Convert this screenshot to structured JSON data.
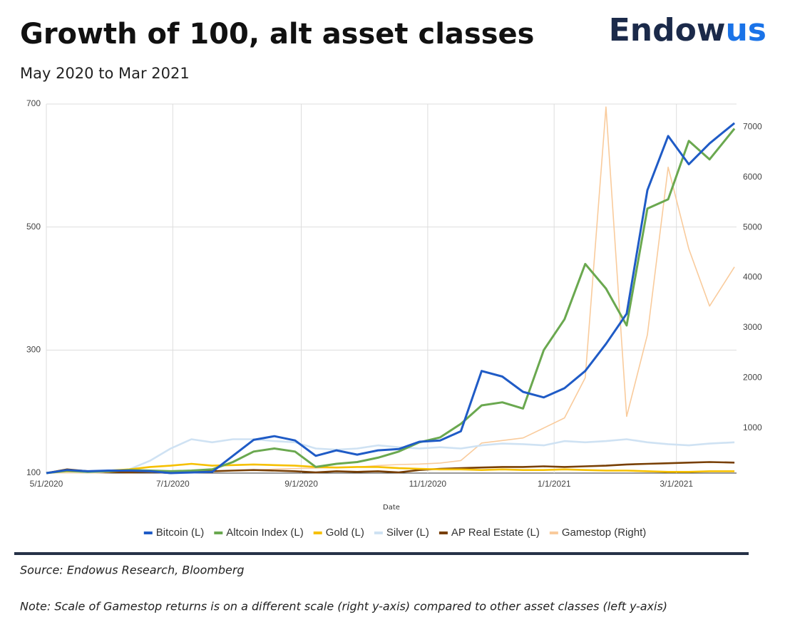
{
  "chart_data": {
    "type": "line",
    "title": "Growth of 100, alt asset classes",
    "subtitle": "May 2020 to Mar 2021",
    "logo": {
      "main": "Endow",
      "accent": "us"
    },
    "x_label": "Date",
    "source": "Source: Endowus Research, Bloomberg",
    "note": "Note: Scale of Gamestop returns is on a different scale (right y-axis) compared to other asset classes (left y-axis)",
    "x": [
      "5/1/2020",
      "5/11/2020",
      "5/21/2020",
      "5/31/2020",
      "6/10/2020",
      "6/20/2020",
      "6/30/2020",
      "7/10/2020",
      "7/20/2020",
      "7/30/2020",
      "8/9/2020",
      "8/19/2020",
      "8/29/2020",
      "9/8/2020",
      "9/18/2020",
      "9/28/2020",
      "10/8/2020",
      "10/18/2020",
      "10/28/2020",
      "11/7/2020",
      "11/17/2020",
      "11/27/2020",
      "12/7/2020",
      "12/17/2020",
      "12/27/2020",
      "1/6/2021",
      "1/16/2021",
      "1/26/2021",
      "2/5/2021",
      "2/15/2021",
      "2/25/2021",
      "3/7/2021",
      "3/17/2021",
      "3/29/2021"
    ],
    "xlim": [
      "5/1/2020",
      "3/30/2021"
    ],
    "xticks": [
      "5/1/2020",
      "7/1/2020",
      "9/1/2020",
      "11/1/2020",
      "1/1/2021",
      "3/1/2021"
    ],
    "ylim": [
      100,
      700
    ],
    "yticks": [
      100,
      300,
      500,
      700
    ],
    "y2lim": [
      100,
      7460
    ],
    "y2ticks": [
      1000,
      2000,
      3000,
      4000,
      5000,
      6000,
      7000
    ],
    "grid": true,
    "legend": "bottom",
    "series": [
      {
        "name": "Bitcoin (L)",
        "color": "#1f5bc6",
        "values": [
          100,
          105,
          103,
          104,
          104,
          103,
          100,
          101,
          102,
          128,
          154,
          160,
          153,
          128,
          137,
          130,
          137,
          139,
          151,
          153,
          168,
          266,
          257,
          232,
          223,
          238,
          266,
          310,
          359,
          560,
          648,
          602,
          636,
          669
        ]
      },
      {
        "name": "Altcoin Index (L)",
        "color": "#6aa84f",
        "values": [
          100,
          104,
          102,
          103,
          105,
          104,
          103,
          104,
          106,
          118,
          135,
          140,
          135,
          110,
          115,
          118,
          125,
          135,
          150,
          158,
          180,
          210,
          215,
          205,
          300,
          350,
          440,
          400,
          340,
          530,
          545,
          640,
          610,
          660
        ]
      },
      {
        "name": "Gold (L)",
        "color": "#f6c000",
        "values": [
          100,
          103,
          102,
          104,
          106,
          110,
          112,
          115,
          112,
          113,
          114,
          113,
          112,
          110,
          109,
          110,
          110,
          108,
          107,
          106,
          106,
          105,
          106,
          105,
          105,
          106,
          105,
          104,
          104,
          103,
          102,
          102,
          103,
          103
        ]
      },
      {
        "name": "Silver (L)",
        "color": "#cfe2f3",
        "values": [
          100,
          102,
          101,
          103,
          106,
          120,
          140,
          155,
          150,
          155,
          155,
          152,
          150,
          140,
          138,
          140,
          145,
          142,
          140,
          142,
          140,
          145,
          148,
          147,
          145,
          152,
          150,
          152,
          155,
          150,
          147,
          145,
          148,
          150
        ]
      },
      {
        "name": "AP Real Estate (L)",
        "color": "#783f04",
        "values": [
          100,
          106,
          103,
          102,
          101,
          102,
          100,
          102,
          103,
          104,
          105,
          104,
          103,
          101,
          103,
          102,
          103,
          101,
          105,
          107,
          108,
          109,
          110,
          110,
          111,
          110,
          111,
          112,
          114,
          115,
          116,
          117,
          118,
          117
        ]
      },
      {
        "name": "Gamestop (Right)",
        "color": "#f9cb9c",
        "axis": "y2",
        "values": [
          100,
          105,
          102,
          110,
          120,
          115,
          110,
          130,
          140,
          150,
          160,
          180,
          190,
          200,
          210,
          220,
          250,
          270,
          280,
          300,
          350,
          700,
          750,
          800,
          1000,
          1200,
          2000,
          7400,
          1230,
          2860,
          6200,
          4570,
          3430,
          4210
        ]
      }
    ]
  }
}
